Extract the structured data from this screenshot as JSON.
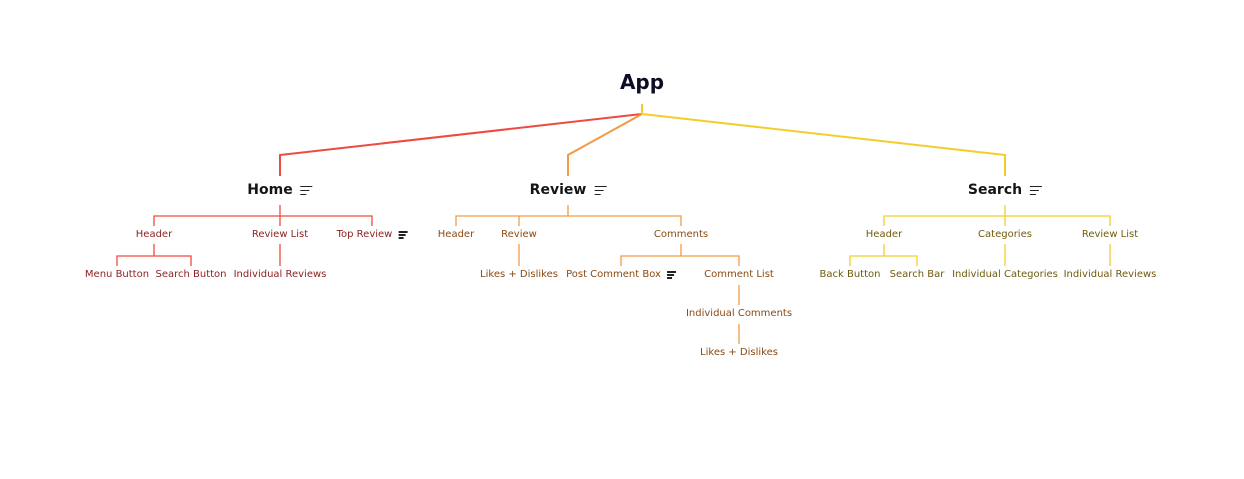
{
  "root": {
    "label": "App"
  },
  "colors": {
    "home": "#ef4a3f",
    "review": "#f39a45",
    "search": "#f4cd2c"
  },
  "home": {
    "label": "Home",
    "header": "Header",
    "menu_button": "Menu Button",
    "search_button": "Search Button",
    "review_list": "Review List",
    "individual_reviews": "Individual Reviews",
    "top_review": "Top Review"
  },
  "review": {
    "label": "Review",
    "header": "Header",
    "review": "Review",
    "likes_dislikes": "Likes + Dislikes",
    "comments": "Comments",
    "post_comment_box": "Post Comment Box",
    "comment_list": "Comment List",
    "individual_comments": "Individual Comments",
    "comment_likes_dislikes": "Likes + Dislikes"
  },
  "search": {
    "label": "Search",
    "header": "Header",
    "back_button": "Back Button",
    "search_bar": "Search Bar",
    "categories": "Categories",
    "individual_categories": "Individual Categories",
    "review_list": "Review List",
    "individual_reviews": "Individual Reviews"
  }
}
